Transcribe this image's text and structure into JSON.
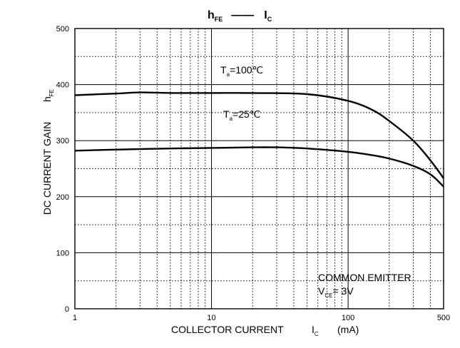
{
  "chart_data": {
    "type": "line",
    "title": {
      "main": "h",
      "main_sub": "FE",
      "dash": "——",
      "right": "I",
      "right_sub": "C"
    },
    "xlabel": {
      "text": "COLLECTOR CURRENT",
      "symbol": "I",
      "symbol_sub": "C",
      "unit": "(mA)"
    },
    "ylabel": {
      "text": "DC CURRENT GAIN",
      "symbol": "h",
      "symbol_sub": "FE"
    },
    "x_scale": "log",
    "xlim": [
      1,
      500
    ],
    "ylim": [
      0,
      500
    ],
    "x_ticks": [
      {
        "value": 1,
        "label": "1"
      },
      {
        "value": 10,
        "label": "10"
      },
      {
        "value": 100,
        "label": "100"
      },
      {
        "value": 500,
        "label": "500"
      }
    ],
    "y_ticks": [
      {
        "value": 0,
        "label": "0"
      },
      {
        "value": 100,
        "label": "100"
      },
      {
        "value": 200,
        "label": "200"
      },
      {
        "value": 300,
        "label": "300"
      },
      {
        "value": 400,
        "label": "400"
      },
      {
        "value": 500,
        "label": "500"
      }
    ],
    "grid": true,
    "series": [
      {
        "name": "Ta=100℃",
        "label": {
          "base": "T",
          "sub": "a",
          "rest": "=100℃"
        },
        "x": [
          1,
          2,
          3,
          5,
          10,
          20,
          50,
          100,
          150,
          200,
          300,
          400,
          500
        ],
        "y": [
          381,
          384,
          386,
          385,
          385,
          385,
          383,
          371,
          355,
          335,
          300,
          265,
          233
        ]
      },
      {
        "name": "Ta=25℃",
        "label": {
          "base": "T",
          "sub": "a",
          "rest": "=25℃"
        },
        "x": [
          1,
          2,
          5,
          10,
          20,
          30,
          50,
          100,
          150,
          200,
          300,
          400,
          500
        ],
        "y": [
          282,
          284,
          286,
          287,
          288,
          288,
          286,
          280,
          274,
          268,
          255,
          240,
          218
        ]
      }
    ],
    "annotations": [
      {
        "text": "COMMON EMITTER"
      },
      {
        "base": "V",
        "sub": "CE",
        "rest": "= 3V"
      }
    ]
  }
}
